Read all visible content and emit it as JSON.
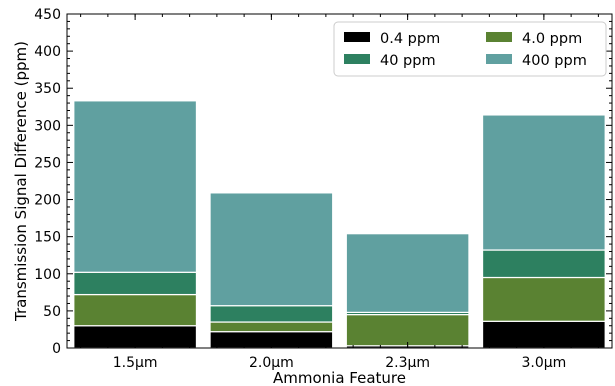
{
  "chart_data": {
    "type": "bar",
    "stacked": true,
    "categories": [
      "1.5μm",
      "2.0μm",
      "2.3μm",
      "3.0μm"
    ],
    "series": [
      {
        "name": "0.4 ppm",
        "color": "#000000",
        "values": [
          30,
          22,
          3,
          36
        ]
      },
      {
        "name": "4.0 ppm",
        "color": "#5a8232",
        "values": [
          42,
          13,
          42,
          59
        ]
      },
      {
        "name": "40 ppm",
        "color": "#2d8060",
        "values": [
          30,
          22,
          3,
          37
        ]
      },
      {
        "name": "400 ppm",
        "color": "#60a0a0",
        "values": [
          231,
          152,
          106,
          182
        ]
      }
    ],
    "xlabel": "Ammonia Feature",
    "ylabel": "Transmission Signal Difference (ppm)",
    "ylim": [
      0,
      450
    ],
    "yticks": [
      0,
      50,
      100,
      150,
      200,
      250,
      300,
      350,
      400,
      450
    ],
    "grid": false,
    "legend_position": "top-right"
  }
}
